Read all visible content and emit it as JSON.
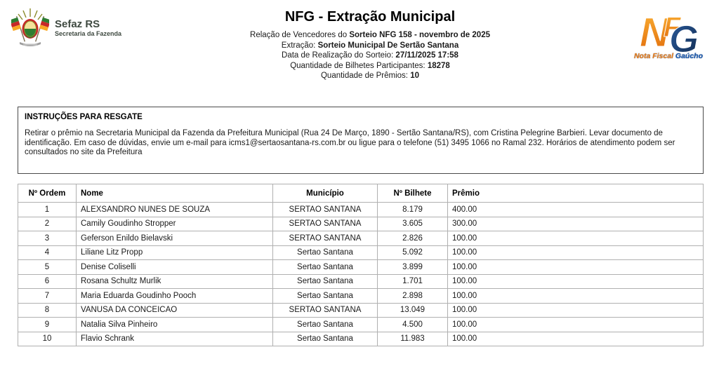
{
  "logos": {
    "sefaz": {
      "title": "Sefaz RS",
      "subtitle": "Secretaria da Fazenda"
    },
    "nfg": {
      "letters": [
        "N",
        "F",
        "G"
      ],
      "caption_orange": "Nota Fiscal",
      "caption_blue": "Gaúcho"
    }
  },
  "header": {
    "title": "NFG - Extração Municipal",
    "lines": [
      {
        "label": "Relação de Vencedores do ",
        "value": "Sorteio NFG 158 - novembro de 2025"
      },
      {
        "label": "Extração: ",
        "value": "Sorteio Municipal De Sertão Santana"
      },
      {
        "label": "Data de Realização do Sorteio: ",
        "value": "27/11/2025 17:58"
      },
      {
        "label": "Quantidade de Bilhetes Participantes: ",
        "value": "18278"
      },
      {
        "label": "Quantidade de Prêmios: ",
        "value": "10"
      }
    ]
  },
  "instructions": {
    "title": "INSTRUÇÕES PARA RESGATE",
    "body": "Retirar o prêmio na Secretaria Municipal da Fazenda da Prefeitura Municipal (Rua 24 De Março, 1890 -  Sertão Santana/RS), com Cristina Pelegrine Barbieri. Levar documento de identificação. Em caso de dúvidas, envie um e-mail para icms1@sertaosantana-rs.com.br ou ligue para o telefone (51) 3495 1066 no Ramal 232. Horários de atendimento podem ser consultados no site da Prefeitura"
  },
  "table": {
    "columns": [
      "Nº Ordem",
      "Nome",
      "Município",
      "Nº Bilhete",
      "Prêmio"
    ],
    "rows": [
      [
        "1",
        "ALEXSANDRO NUNES DE SOUZA",
        "SERTAO SANTANA",
        "8.179",
        "400.00"
      ],
      [
        "2",
        "Camily Goudinho Stropper",
        "SERTAO SANTANA",
        "3.605",
        "300.00"
      ],
      [
        "3",
        "Geferson Enildo Bielavski",
        "SERTAO SANTANA",
        "2.826",
        "100.00"
      ],
      [
        "4",
        "Liliane Litz Propp",
        "Sertao Santana",
        "5.092",
        "100.00"
      ],
      [
        "5",
        "Denise Coliselli",
        "Sertao Santana",
        "3.899",
        "100.00"
      ],
      [
        "6",
        "Rosana Schultz Murlik",
        "Sertao Santana",
        "1.701",
        "100.00"
      ],
      [
        "7",
        "Maria Eduarda Goudinho Pooch",
        "Sertao Santana",
        "2.898",
        "100.00"
      ],
      [
        "8",
        "VANUSA DA CONCEICAO",
        "SERTAO SANTANA",
        "13.049",
        "100.00"
      ],
      [
        "9",
        "Natalia Silva Pinheiro",
        "Sertao Santana",
        "4.500",
        "100.00"
      ],
      [
        "10",
        "Flavio Schrank",
        "Sertao Santana",
        "11.983",
        "100.00"
      ]
    ]
  },
  "colors": {
    "accent_orange": "#f07d12",
    "accent_blue": "#1c3f6e",
    "border_dark": "#4a4a4a",
    "border_light": "#b0b0b0"
  }
}
